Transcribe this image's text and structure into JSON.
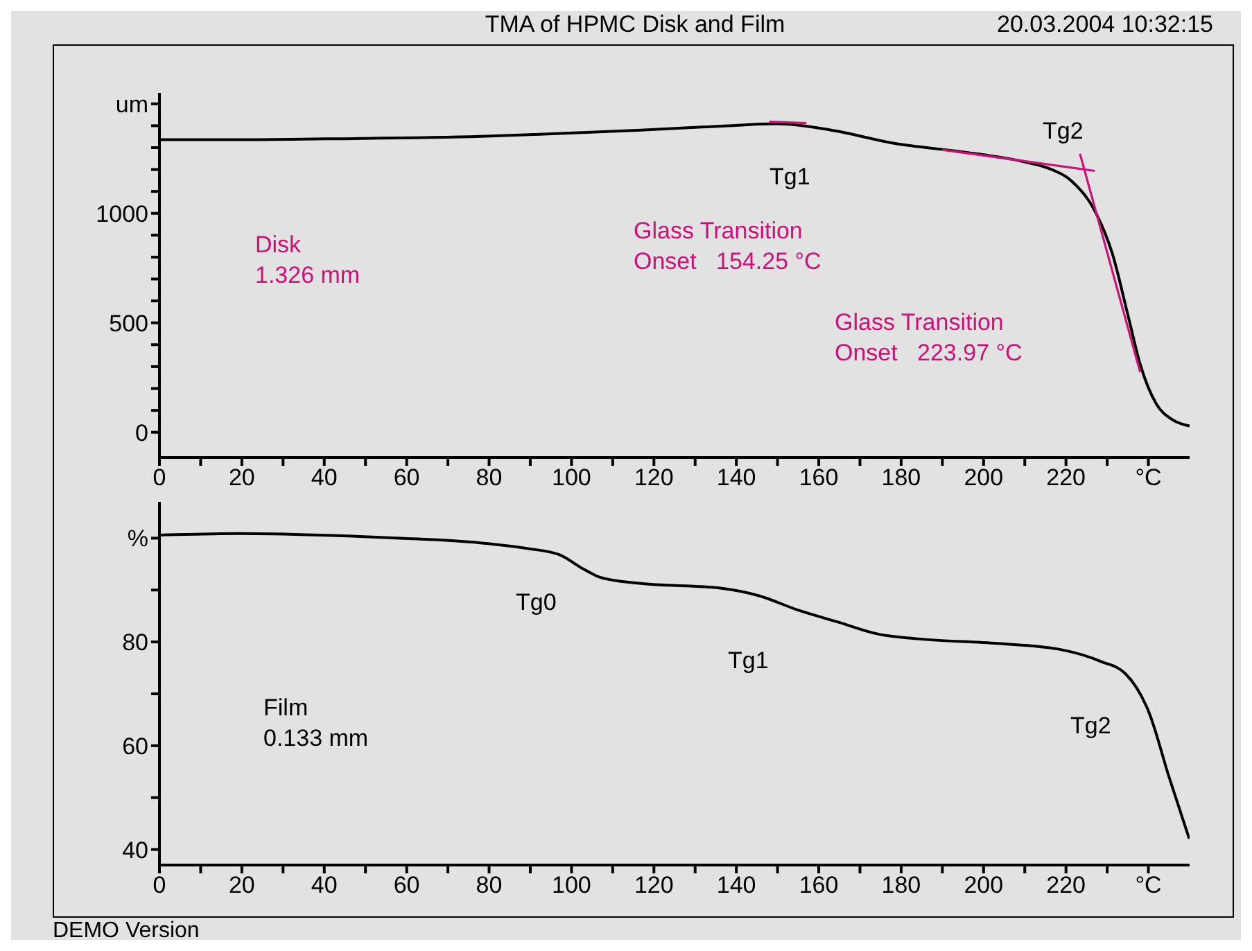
{
  "chart_data": [
    {
      "type": "line",
      "title": "TMA of HPMC Disk and Film",
      "x": [
        0,
        20,
        40,
        78,
        97.4,
        116.8,
        136.2,
        149.8,
        163,
        178.8,
        194.3,
        209.9,
        215.7,
        221.5,
        227.3,
        231.2,
        235.1,
        238,
        241.9,
        245.8,
        250
      ],
      "series": [
        {
          "color": "#000000",
          "values": [
            1336,
            1336,
            1340,
            1351,
            1365,
            1380,
            1398,
            1409,
            1380,
            1318,
            1282,
            1235,
            1206,
            1145,
            1000,
            819,
            530,
            311,
            130,
            58,
            29
          ]
        },
        {
          "type": "line",
          "color": "#cc1177",
          "x": [
            148,
            157
          ],
          "values": [
            1418,
            1412
          ]
        },
        {
          "type": "line",
          "color": "#cc1177",
          "x": [
            190,
            227
          ],
          "values": [
            1290,
            1194
          ]
        },
        {
          "type": "line",
          "color": "#cc1177",
          "x": [
            223.4,
            238
          ],
          "values": [
            1272,
            275
          ]
        }
      ],
      "xlim": [
        0,
        250
      ],
      "ylim": [
        -115,
        1550
      ],
      "xticks": [
        0,
        {
          "value": 10,
          "label": null
        },
        20,
        {
          "value": 30,
          "label": null
        },
        40,
        {
          "value": 50,
          "label": null
        },
        60,
        {
          "value": 70,
          "label": null
        },
        80,
        {
          "value": 90,
          "label": null
        },
        100,
        {
          "value": 110,
          "label": null
        },
        120,
        {
          "value": 130,
          "label": null
        },
        140,
        {
          "value": 150,
          "label": null
        },
        160,
        {
          "value": 170,
          "label": null
        },
        180,
        {
          "value": 190,
          "label": null
        },
        200,
        {
          "value": 210,
          "label": null
        },
        220,
        {
          "value": 230,
          "label": null
        },
        {
          "value": 240,
          "label": "°C"
        }
      ],
      "yticks": [
        0,
        {
          "value": 100,
          "label": null
        },
        {
          "value": 200,
          "label": null
        },
        {
          "value": 300,
          "label": null
        },
        {
          "value": 400,
          "label": null
        },
        500,
        {
          "value": 600,
          "label": null
        },
        {
          "value": 700,
          "label": null
        },
        {
          "value": 800,
          "label": null
        },
        {
          "value": 900,
          "label": null
        },
        1000,
        {
          "value": 1100,
          "label": null
        },
        {
          "value": 1200,
          "label": null
        },
        {
          "value": 1300,
          "label": null
        },
        {
          "value": 1400,
          "label": null
        },
        {
          "value": 1500,
          "label": "um"
        }
      ],
      "annotations": [
        "20.03.2004 10:32:15",
        "Disk\n1.326 mm",
        "Tg1",
        "Glass Transition\nOnset   154.25 °C",
        "Tg2",
        "Glass Transition\nOnset   223.97 °C"
      ]
    },
    {
      "type": "line",
      "x": [
        0,
        19.7,
        39,
        58.4,
        77.8,
        89.4,
        97.1,
        103,
        106.8,
        116.4,
        135.8,
        145.5,
        155.1,
        164.8,
        174.5,
        184.1,
        203.5,
        218.9,
        228.6,
        234.4,
        240.2,
        245,
        249.9
      ],
      "series": [
        {
          "color": "#000000",
          "values": [
            100.6,
            100.9,
            100.6,
            100.0,
            99.1,
            98.0,
            96.8,
            94.0,
            92.5,
            91.3,
            90.4,
            88.9,
            86.1,
            83.8,
            81.5,
            80.6,
            79.7,
            78.5,
            76.2,
            73.9,
            66.3,
            54.0,
            42.1
          ]
        }
      ],
      "xlim": [
        0,
        250
      ],
      "ylim": [
        37,
        107
      ],
      "xticks": [
        0,
        {
          "value": 10,
          "label": null
        },
        20,
        {
          "value": 30,
          "label": null
        },
        40,
        {
          "value": 50,
          "label": null
        },
        60,
        {
          "value": 70,
          "label": null
        },
        80,
        {
          "value": 90,
          "label": null
        },
        100,
        {
          "value": 110,
          "label": null
        },
        120,
        {
          "value": 130,
          "label": null
        },
        140,
        {
          "value": 150,
          "label": null
        },
        160,
        {
          "value": 170,
          "label": null
        },
        180,
        {
          "value": 190,
          "label": null
        },
        200,
        {
          "value": 210,
          "label": null
        },
        220,
        {
          "value": 230,
          "label": null
        },
        {
          "value": 240,
          "label": "°C"
        }
      ],
      "yticks": [
        40,
        {
          "value": 50,
          "label": null
        },
        60,
        {
          "value": 70,
          "label": null
        },
        80,
        {
          "value": 90,
          "label": null
        },
        {
          "value": 100,
          "label": "%"
        }
      ],
      "annotations": [
        "DEMO Version",
        "Tg0",
        "Tg1",
        "Tg2",
        "Film\n0.133 mm"
      ]
    }
  ]
}
